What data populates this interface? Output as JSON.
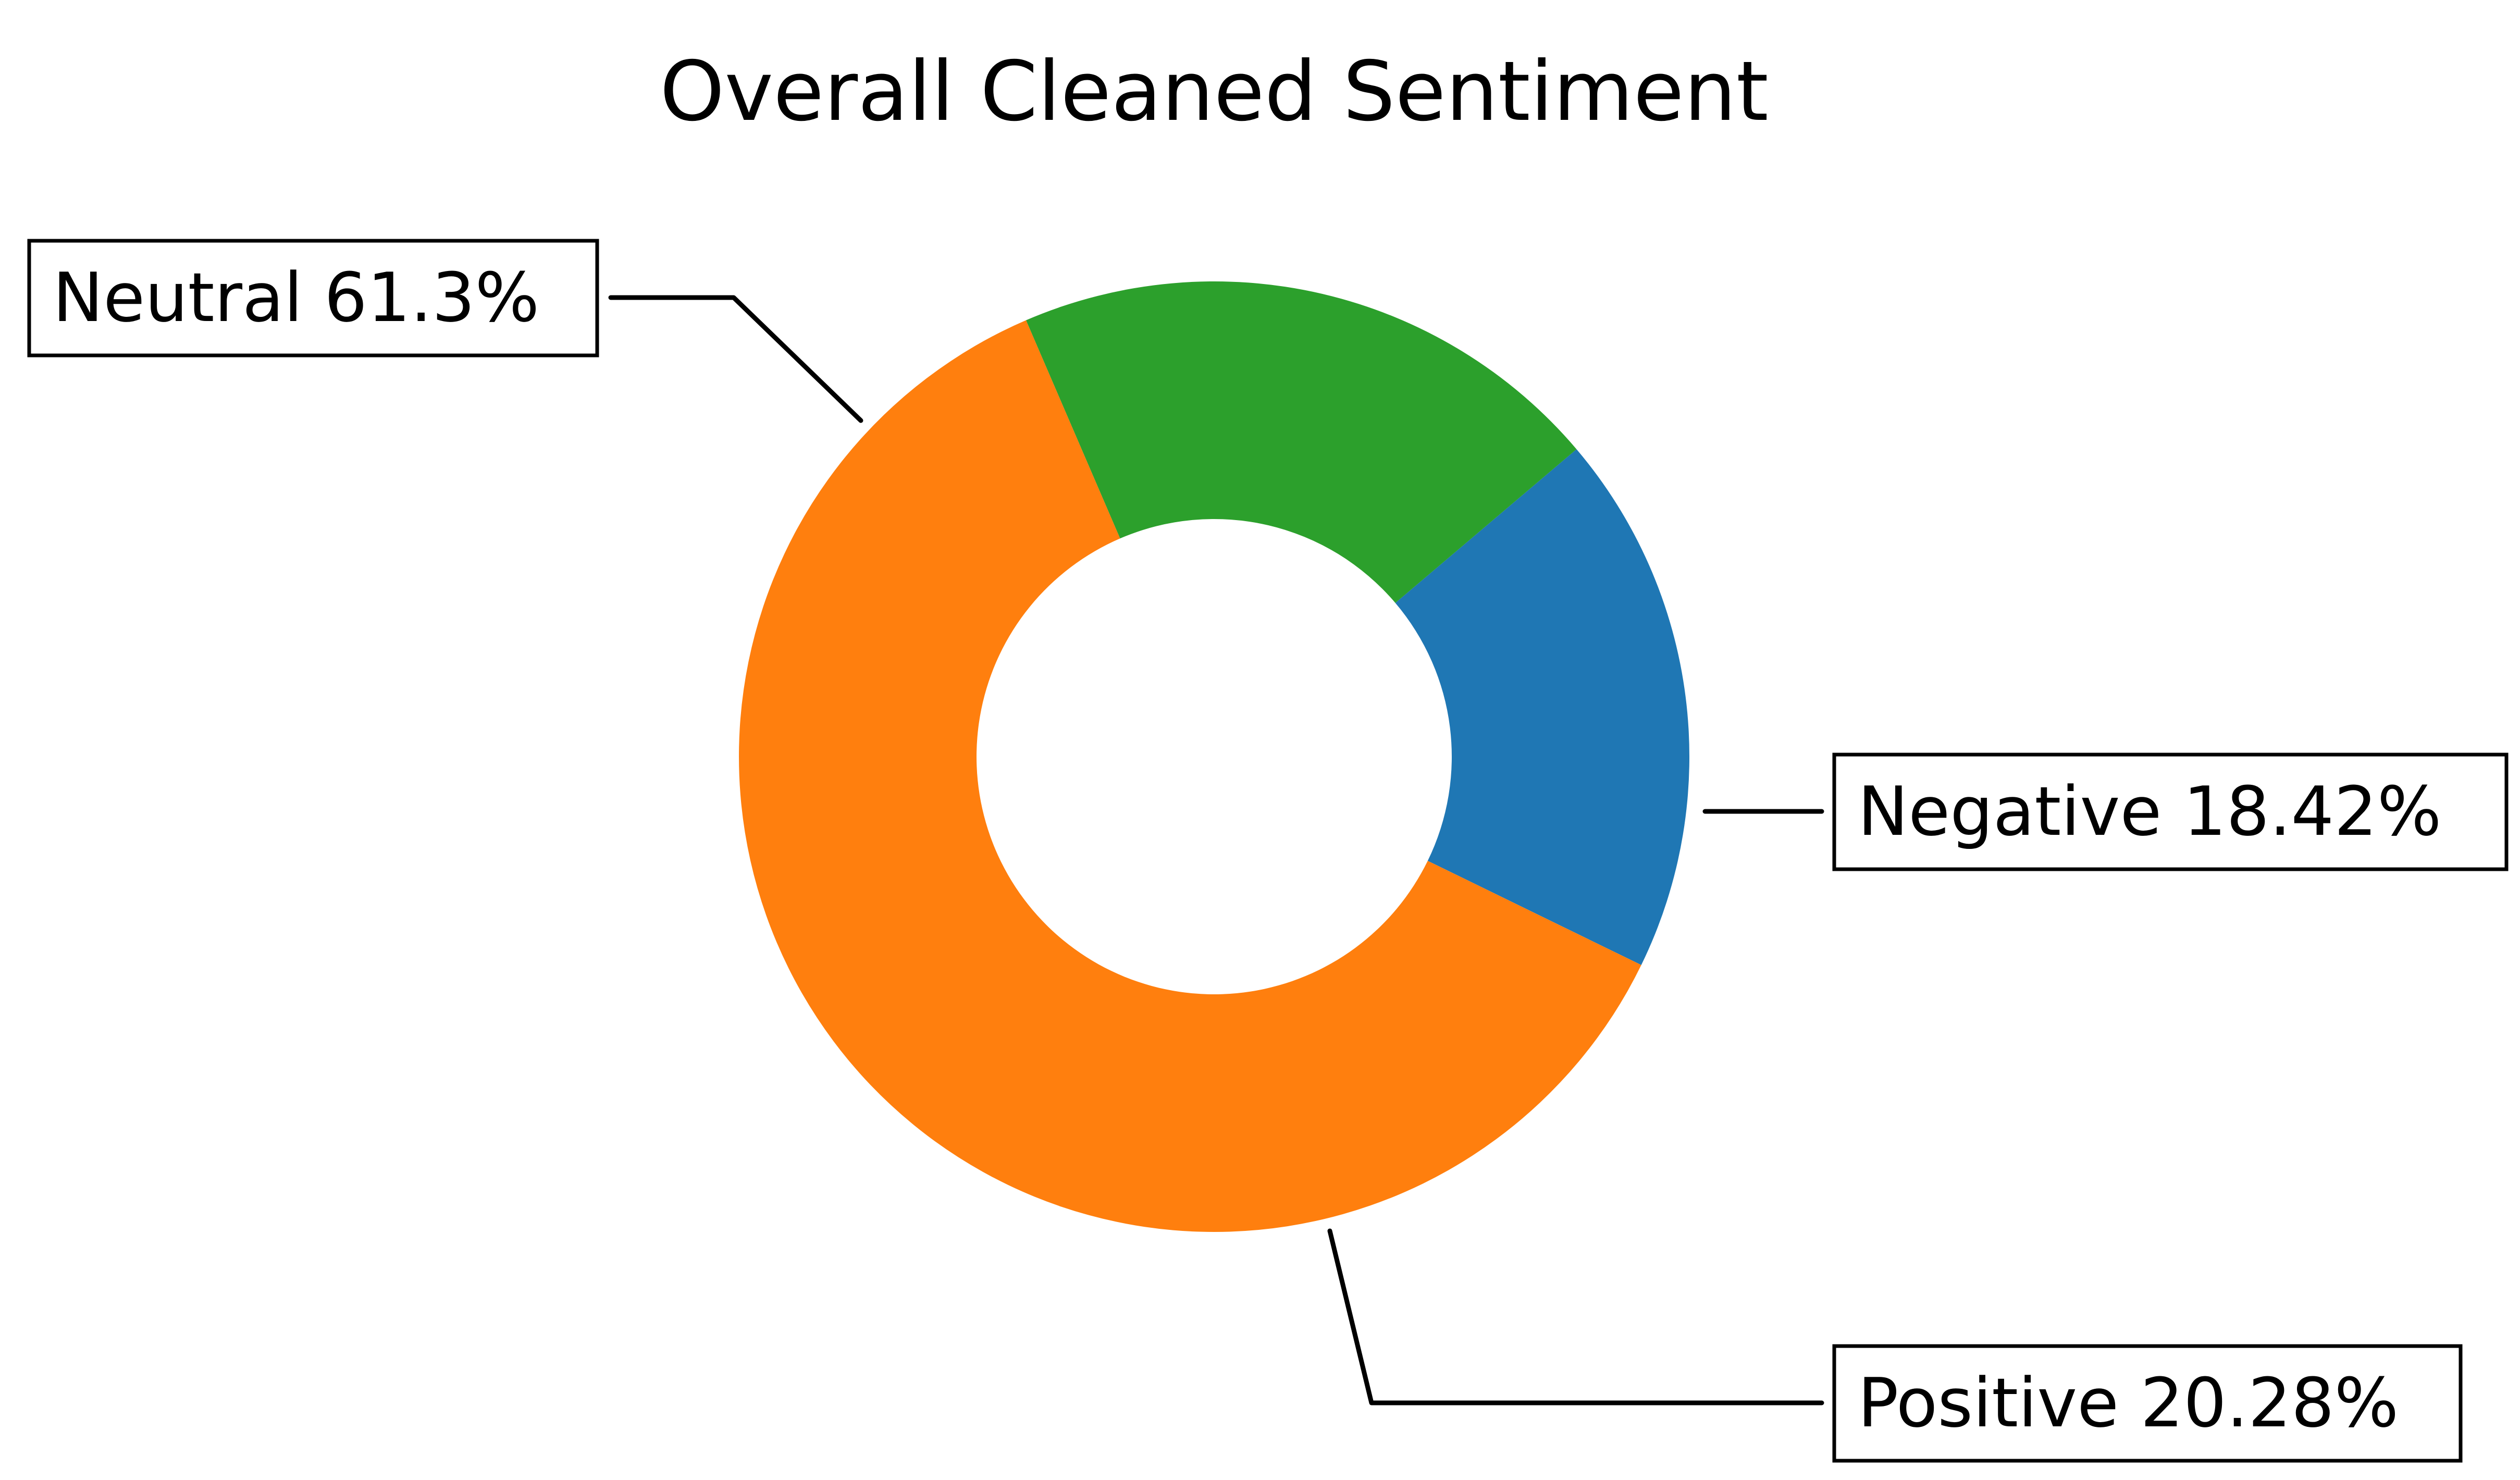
{
  "chart_data": {
    "type": "pie",
    "style": "donut",
    "title": "Overall Cleaned Sentiment",
    "categories": [
      "Negative",
      "Positive",
      "Neutral"
    ],
    "values": [
      18.42,
      20.28,
      61.3
    ],
    "labels": [
      "Negative 18.42%",
      "Positive 20.28%",
      "Neutral 61.3%"
    ],
    "colors": [
      "#1f77b4",
      "#2ca02c",
      "#ff7f0e"
    ],
    "legend": "none",
    "label_placement": "outside-with-leader-lines"
  }
}
